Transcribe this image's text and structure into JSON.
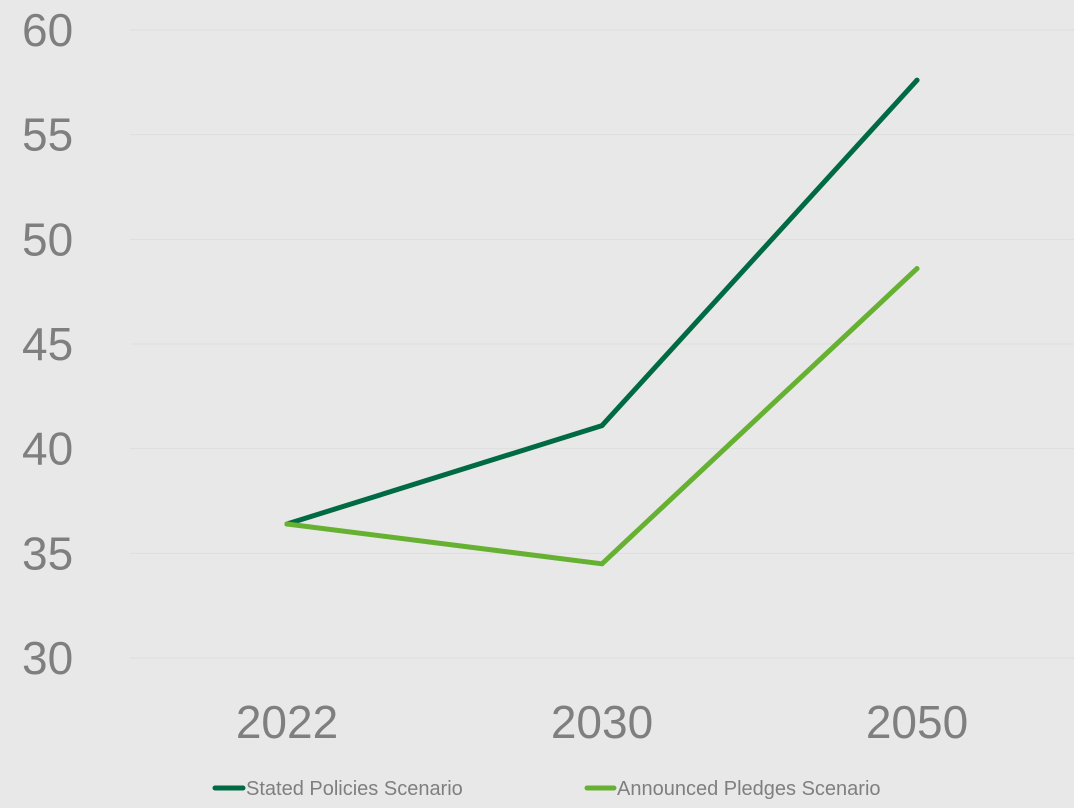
{
  "chart_data": {
    "type": "line",
    "categories": [
      "2022",
      "2030",
      "2050"
    ],
    "y_ticks": [
      "30",
      "35",
      "40",
      "45",
      "50",
      "55",
      "60"
    ],
    "ylim": [
      30,
      60
    ],
    "grid": true,
    "legend_position": "bottom",
    "series": [
      {
        "name": "Stated Policies Scenario",
        "color": "#006a44",
        "values": [
          36.4,
          41.1,
          57.6
        ]
      },
      {
        "name": "Announced Pledges Scenario",
        "color": "#66b132",
        "values": [
          36.4,
          34.5,
          48.6
        ]
      }
    ]
  }
}
